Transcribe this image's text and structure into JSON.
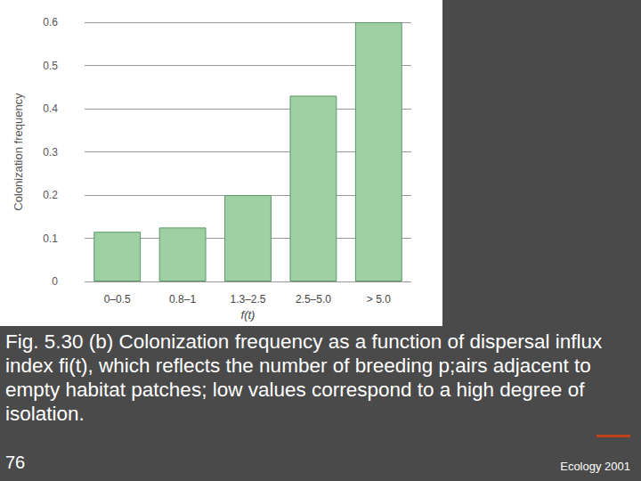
{
  "chart_data": {
    "type": "bar",
    "categories": [
      "0–0.5",
      "0.8–1",
      "1.3–2.5",
      "2.5–5.0",
      "> 5.0"
    ],
    "values": [
      0.115,
      0.125,
      0.2,
      0.43,
      0.6
    ],
    "color": "#9fd0a4",
    "xlabel": "f(t)",
    "ylabel": "Colonization frequency",
    "ylim": [
      0,
      0.6
    ],
    "yticks": [
      0,
      0.1,
      0.2,
      0.3,
      0.4,
      0.5,
      0.6
    ],
    "grid": true
  },
  "slide": {
    "caption": "Fig. 5.30 (b) Colonization frequency as a function of dispersal influx index fi(t), which reflects the number of breeding p;airs adjacent to empty habitat patches; low values correspond to a high degree of isolation.",
    "page": "76",
    "footer": "Ecology 2001"
  }
}
